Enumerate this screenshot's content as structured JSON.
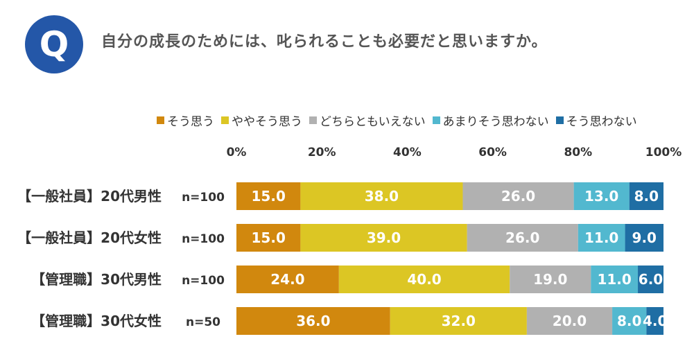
{
  "question": {
    "badge": "Q",
    "text": "自分の成長のためには、叱られることも必要だと思いますか。"
  },
  "chart_data": {
    "type": "bar",
    "orientation": "horizontal",
    "stacked": true,
    "percent": true,
    "xlim": [
      0,
      100
    ],
    "ticks": [
      "0%",
      "20%",
      "40%",
      "60%",
      "80%",
      "100%"
    ],
    "categories": [
      "【一般社員】20代男性",
      "【一般社員】20代女性",
      "【管理職】30代男性",
      "【管理職】30代女性"
    ],
    "sample_sizes": [
      "n=100",
      "n=100",
      "n=100",
      "n=50"
    ],
    "series": [
      {
        "name": "そう思う",
        "color": "#d1880e",
        "values": [
          15.0,
          15.0,
          24.0,
          36.0
        ],
        "labels": [
          "15.0",
          "15.0",
          "24.0",
          "36.0"
        ]
      },
      {
        "name": "ややそう思う",
        "color": "#dcc624",
        "values": [
          38.0,
          39.0,
          40.0,
          32.0
        ],
        "labels": [
          "38.0",
          "39.0",
          "40.0",
          "32.0"
        ]
      },
      {
        "name": "どちらともいえない",
        "color": "#b1b1b1",
        "values": [
          26.0,
          26.0,
          19.0,
          20.0
        ],
        "labels": [
          "26.0",
          "26.0",
          "19.0",
          "20.0"
        ]
      },
      {
        "name": "あまりそう思わない",
        "color": "#52b8cf",
        "values": [
          13.0,
          11.0,
          11.0,
          8.0
        ],
        "labels": [
          "13.0",
          "11.0",
          "11.0",
          "8.0"
        ]
      },
      {
        "name": "そう思わない",
        "color": "#1f6ea4",
        "values": [
          8.0,
          9.0,
          6.0,
          4.0
        ],
        "labels": [
          "8.0",
          "9.0",
          "6.0",
          "4.0"
        ]
      }
    ],
    "legend_position": "top-right",
    "grid": false
  }
}
